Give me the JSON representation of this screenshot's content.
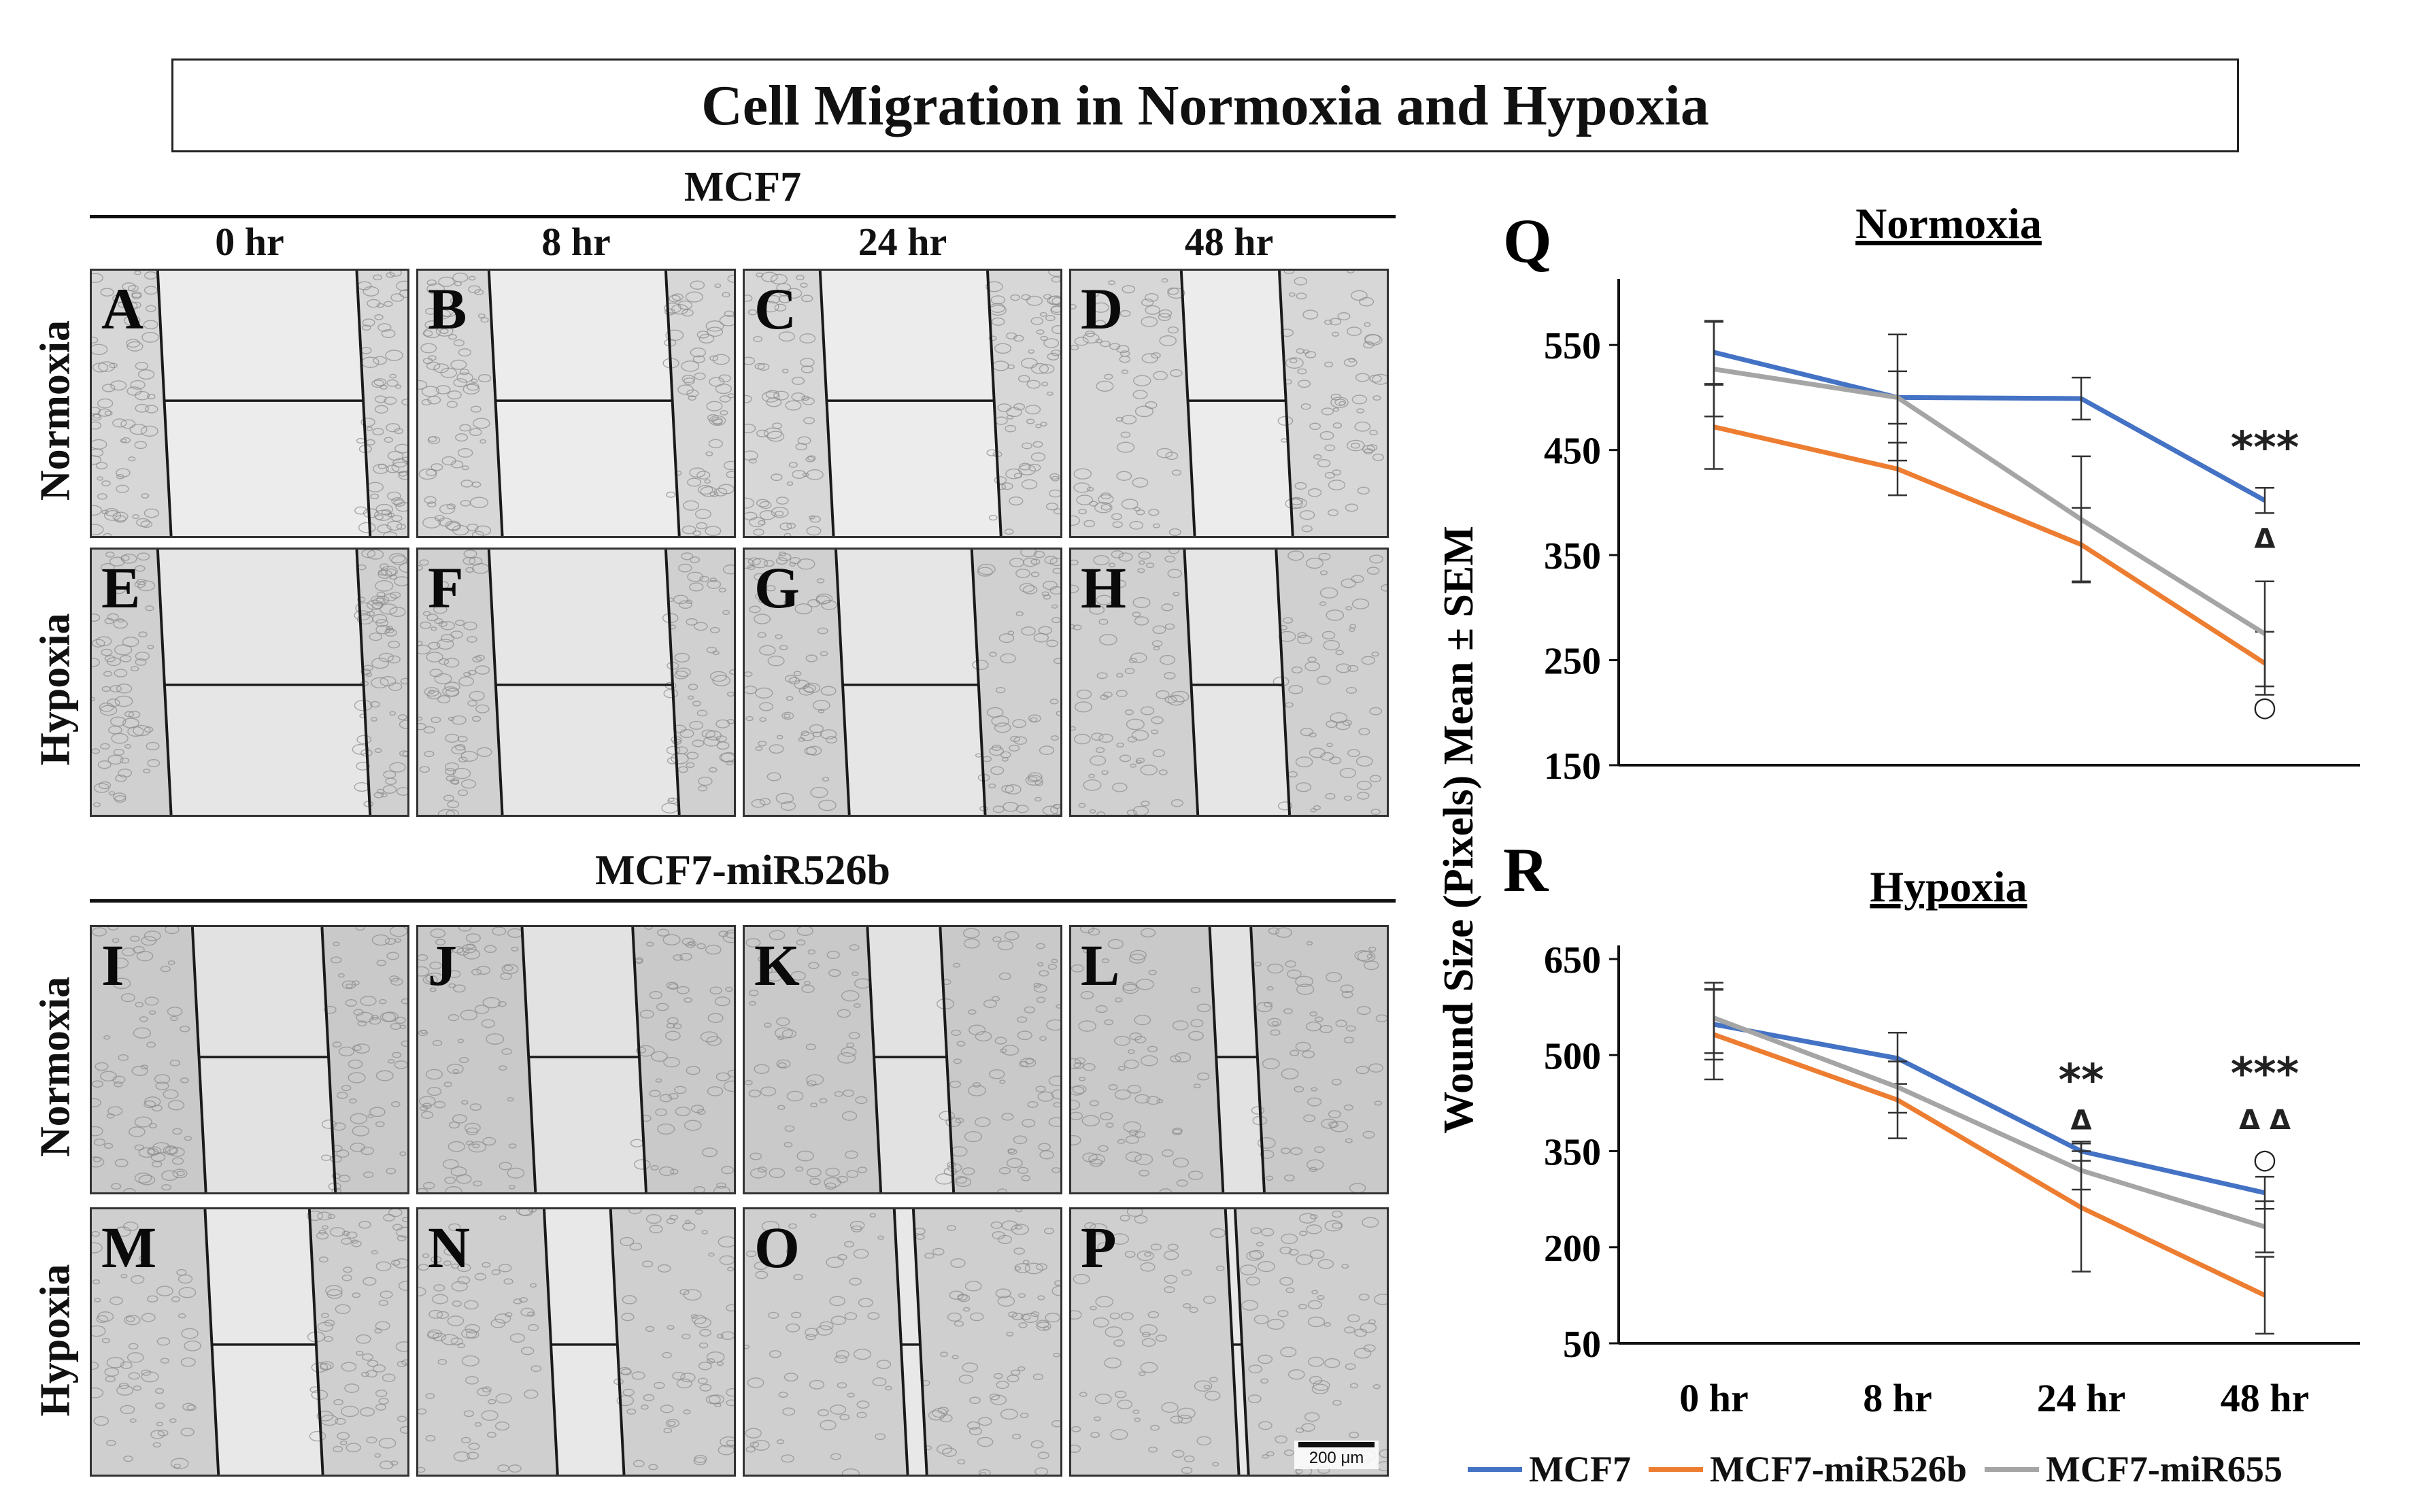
{
  "figure_title": "Cell Migration in Normoxia and Hypoxia",
  "groups": [
    {
      "label": "MCF7"
    },
    {
      "label": "MCF7-miR526b"
    }
  ],
  "time_points": [
    "0 hr",
    "8 hr",
    "24 hr",
    "48 hr"
  ],
  "row_labels": [
    "Normoxia",
    "Hypoxia"
  ],
  "panels": [
    {
      "letter": "A",
      "gap_fraction": 0.62
    },
    {
      "letter": "B",
      "gap_fraction": 0.55
    },
    {
      "letter": "C",
      "gap_fraction": 0.52
    },
    {
      "letter": "D",
      "gap_fraction": 0.3
    },
    {
      "letter": "E",
      "gap_fraction": 0.62
    },
    {
      "letter": "F",
      "gap_fraction": 0.55
    },
    {
      "letter": "G",
      "gap_fraction": 0.42
    },
    {
      "letter": "H",
      "gap_fraction": 0.28
    },
    {
      "letter": "I",
      "gap_fraction": 0.4
    },
    {
      "letter": "J",
      "gap_fraction": 0.34
    },
    {
      "letter": "K",
      "gap_fraction": 0.22
    },
    {
      "letter": "L",
      "gap_fraction": 0.12
    },
    {
      "letter": "M",
      "gap_fraction": 0.32
    },
    {
      "letter": "N",
      "gap_fraction": 0.2
    },
    {
      "letter": "O",
      "gap_fraction": 0.05
    },
    {
      "letter": "P",
      "gap_fraction": 0.02
    }
  ],
  "scale_bar_label": "200 μm",
  "y_axis_label": "Wound Size (Pixels) Mean ± SEM",
  "colors": {
    "MCF7": "#4472C4",
    "MCF7-miR526b": "#ED7D31",
    "MCF7-miR655": "#A5A5A5"
  },
  "chart_data": [
    {
      "panel_letter": "Q",
      "type": "line",
      "title": "Normoxia",
      "categories": [
        "0 hr",
        "8 hr",
        "24 hr",
        "48 hr"
      ],
      "ylim": [
        150,
        600
      ],
      "yticks": [
        150,
        250,
        350,
        450,
        550
      ],
      "series": [
        {
          "name": "MCF7",
          "values": [
            543,
            500,
            499,
            402
          ],
          "errors": [
            30,
            25,
            20,
            12
          ]
        },
        {
          "name": "MCF7-miR526b",
          "values": [
            472,
            432,
            360,
            247
          ],
          "errors": [
            40,
            25,
            35,
            30
          ]
        },
        {
          "name": "MCF7-miR655",
          "values": [
            527,
            500,
            384,
            275
          ],
          "errors": [
            45,
            60,
            60,
            50
          ]
        }
      ],
      "annotations": [
        {
          "category": "48 hr",
          "y": 438,
          "text": "***"
        },
        {
          "category": "48 hr",
          "y": 357,
          "text": "Δ"
        },
        {
          "category": "48 hr",
          "y": 197,
          "text": "○"
        }
      ]
    },
    {
      "panel_letter": "R",
      "type": "line",
      "title": "Hypoxia",
      "categories": [
        "0 hr",
        "8 hr",
        "24 hr",
        "48 hr"
      ],
      "ylim": [
        50,
        650
      ],
      "yticks": [
        50,
        200,
        350,
        500,
        650
      ],
      "series": [
        {
          "name": "MCF7",
          "values": [
            548,
            495,
            350,
            285
          ],
          "errors": [
            55,
            40,
            15,
            25
          ]
        },
        {
          "name": "MCF7-miR526b",
          "values": [
            532,
            430,
            262,
            125
          ],
          "errors": [
            70,
            60,
            100,
            60
          ]
        },
        {
          "name": "MCF7-miR655",
          "values": [
            558,
            450,
            320,
            232
          ],
          "errors": [
            55,
            40,
            30,
            40
          ]
        }
      ],
      "annotations": [
        {
          "category": "24 hr",
          "y": 395,
          "text": "**"
        },
        {
          "category": "24 hr",
          "y": 405,
          "text": "Δ"
        },
        {
          "category": "48 hr",
          "y": 400,
          "text": "***"
        },
        {
          "category": "48 hr",
          "y": 395,
          "text": "Δ Δ"
        },
        {
          "category": "48 hr",
          "y": 350,
          "text": "○"
        }
      ]
    }
  ]
}
